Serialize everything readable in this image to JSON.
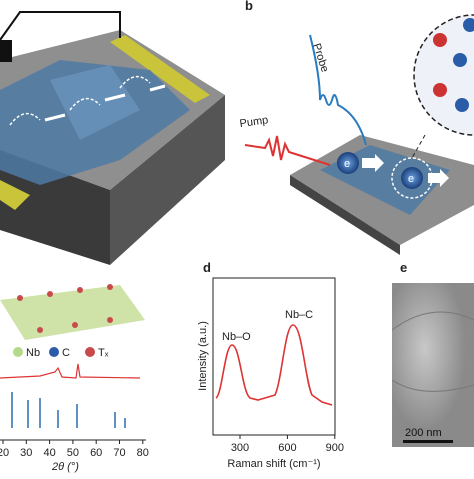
{
  "panels": {
    "b": {
      "label": "b",
      "probe": "Probe",
      "pump": "Pump",
      "electron": "e",
      "electron2": "e"
    },
    "c": {
      "legend": [
        "Nb",
        "C",
        "Tₓ"
      ],
      "xticks": [
        20,
        30,
        40,
        50,
        60,
        70,
        80
      ],
      "xlabel": "2θ (°)"
    },
    "d": {
      "label": "d",
      "ylabel": "Intensity (a.u.)",
      "xlabel": "Raman shift (cm⁻¹)",
      "xticks": [
        300,
        600,
        900
      ],
      "peak1": "Nb–O",
      "peak2": "Nb–C"
    },
    "e": {
      "label": "e",
      "scalebar": "200 nm"
    }
  }
}
